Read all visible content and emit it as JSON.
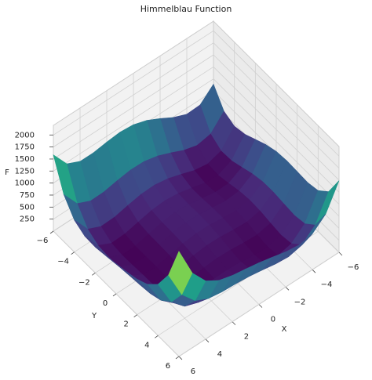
{
  "chart_data": {
    "type": "surface3d",
    "title": "Himmelblau Function",
    "x_label": "X",
    "y_label": "Y",
    "z_label": "F",
    "x": [
      -6,
      -5,
      -4,
      -3,
      -2,
      -1,
      0,
      1,
      2,
      3,
      4,
      5,
      6
    ],
    "y": [
      -6,
      -5,
      -4,
      -3,
      -2,
      -1,
      0,
      1,
      2,
      3,
      4,
      5,
      6
    ],
    "z": [
      [
        890,
        640,
        626,
        740,
        898,
        1040,
        1130,
        1156,
        1130,
        1088,
        1090,
        1220,
        1586
      ],
      [
        544,
        250,
        196,
        274,
        400,
        514,
        580,
        586,
        544,
        490,
        484,
        610,
        976
      ],
      [
        450,
        116,
        26,
        72,
        170,
        260,
        306,
        296,
        242,
        180,
        170,
        296,
        666
      ],
      [
        500,
        130,
        8,
        26,
        100,
        170,
        200,
        178,
        116,
        50,
        40,
        170,
        548
      ],
      [
        610,
        208,
        58,
        52,
        106,
        160,
        178,
        148,
        82,
        16,
        10,
        148,
        538
      ],
      [
        720,
        290,
        116,
        90,
        128,
        170,
        180,
        146,
        80,
        18,
        20,
        170,
        576
      ],
      [
        794,
        340,
        146,
        104,
        130,
        164,
        170,
        136,
        74,
        20,
        34,
        200,
        626
      ],
      [
        820,
        346,
        136,
        82,
        100,
        130,
        136,
        106,
        52,
        10,
        40,
        226,
        676
      ],
      [
        810,
        320,
        98,
        36,
        50,
        80,
        90,
        68,
        26,
        0,
        50,
        260,
        738
      ],
      [
        800,
        298,
        68,
        2,
        16,
        50,
        68,
        58,
        32,
        26,
        100,
        338,
        848
      ],
      [
        850,
        340,
        106,
        40,
        58,
        100,
        130,
        136,
        130,
        148,
        250,
        520,
        1066
      ],
      [
        1044,
        530,
        296,
        234,
        260,
        314,
        360,
        386,
        404,
        450,
        584,
        890,
        1476
      ],
      [
        1490,
        976,
        746,
        692,
        730,
        800,
        866,
        916,
        962,
        1040,
        1210,
        1556,
        2186
      ]
    ],
    "colormap": "viridis",
    "xlim": [
      -6,
      6
    ],
    "ylim": [
      -6,
      6
    ],
    "zlim": [
      0,
      2200
    ],
    "xticks": [
      {
        "value": -6,
        "label": "−6"
      },
      {
        "value": -4,
        "label": "−4"
      },
      {
        "value": -2,
        "label": "−2"
      },
      0,
      2,
      4,
      6
    ],
    "yticks": [
      {
        "value": -6,
        "label": "−6"
      },
      {
        "value": -4,
        "label": "−4"
      },
      {
        "value": -2,
        "label": "−2"
      },
      0,
      2,
      4,
      6
    ],
    "zticks": [
      250,
      500,
      750,
      1000,
      1250,
      1500,
      1750,
      2000
    ],
    "grid": true
  }
}
